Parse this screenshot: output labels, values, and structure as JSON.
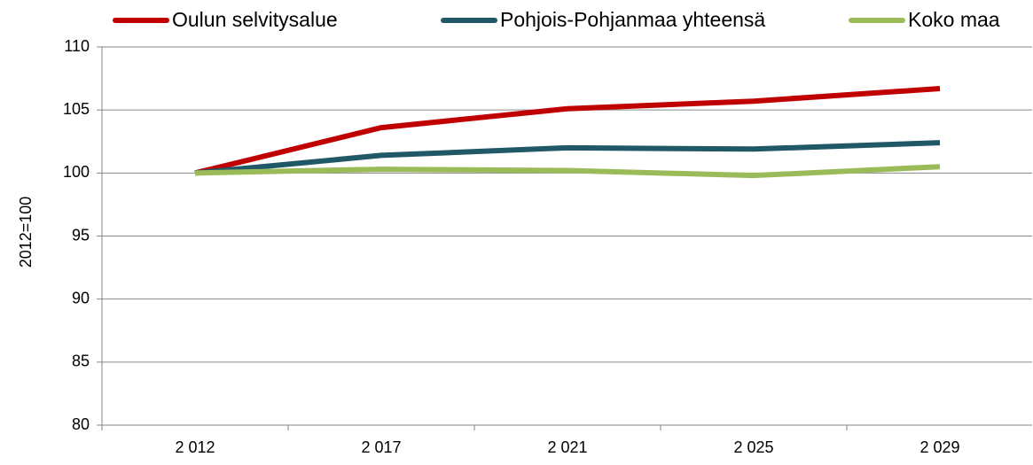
{
  "chart_data": {
    "type": "line",
    "y_label": "2012=100",
    "categories": [
      "2 012",
      "2 017",
      "2 021",
      "2 025",
      "2 029"
    ],
    "series": [
      {
        "name": "Oulun selvitysalue",
        "color": "#c00000",
        "values": [
          100,
          103.6,
          105.1,
          105.7,
          106.7
        ]
      },
      {
        "name": "Pohjois-Pohjanmaa yhteensä",
        "color": "#215868",
        "values": [
          100,
          101.4,
          102,
          101.9,
          102.4
        ]
      },
      {
        "name": "Koko maa",
        "color": "#9bbb59",
        "values": [
          100,
          100.3,
          100.2,
          99.8,
          100.5
        ]
      }
    ],
    "ylim": [
      80,
      110
    ],
    "yticks": [
      80,
      85,
      90,
      95,
      100,
      105,
      110
    ],
    "grid": true,
    "legend": "top"
  }
}
